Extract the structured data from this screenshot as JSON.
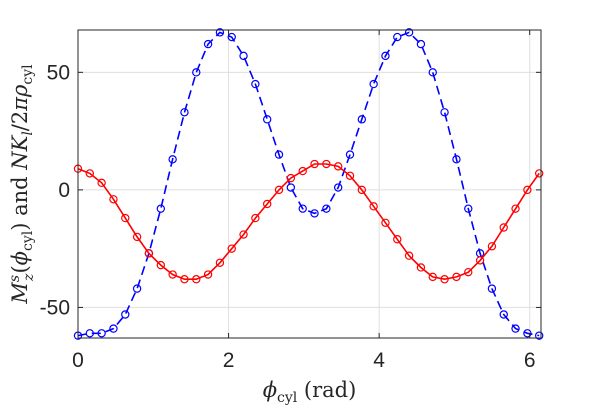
{
  "chart_data": {
    "type": "line",
    "title": "",
    "xlabel": "ϕ_cyl (rad)",
    "ylabel": "M_z^s(ϕ_cyl) and NK_l/2πρ_cyl",
    "xlim": [
      0,
      6.15
    ],
    "ylim": [
      -63,
      68
    ],
    "x_ticks": [
      "0",
      "2",
      "4",
      "6"
    ],
    "y_ticks": [
      "-50",
      "0",
      "50"
    ],
    "x_tick_values": [
      0,
      2,
      4,
      6
    ],
    "y_tick_values": [
      -50,
      0,
      50
    ],
    "grid": true,
    "legend": "none",
    "series": [
      {
        "color": "#0000ff",
        "line_style": "dashed",
        "marker": "circle",
        "x": [
          0,
          0.157,
          0.314,
          0.471,
          0.628,
          0.785,
          0.942,
          1.1,
          1.257,
          1.414,
          1.571,
          1.728,
          1.885,
          2.042,
          2.199,
          2.356,
          2.513,
          2.67,
          2.827,
          2.985,
          3.142,
          3.299,
          3.456,
          3.613,
          3.77,
          3.927,
          4.084,
          4.241,
          4.398,
          4.555,
          4.712,
          4.869,
          5.027,
          5.184,
          5.341,
          5.498,
          5.655,
          5.812,
          5.969,
          6.126
        ],
        "y": [
          -62,
          -61,
          -61,
          -59,
          -53,
          -42,
          -27,
          -8,
          13,
          33,
          50,
          62,
          67,
          65,
          57,
          45,
          30,
          15,
          1,
          -8,
          -10,
          -8,
          1,
          15,
          30,
          45,
          57,
          65,
          67,
          62,
          50,
          33,
          13,
          -8,
          -27,
          -42,
          -53,
          -59,
          -61,
          -62
        ]
      },
      {
        "color": "#ff0000",
        "line_style": "solid",
        "marker": "circle",
        "x": [
          0,
          0.157,
          0.314,
          0.471,
          0.628,
          0.785,
          0.942,
          1.1,
          1.257,
          1.414,
          1.571,
          1.728,
          1.885,
          2.042,
          2.199,
          2.356,
          2.513,
          2.67,
          2.827,
          2.985,
          3.142,
          3.299,
          3.456,
          3.613,
          3.77,
          3.927,
          4.084,
          4.241,
          4.398,
          4.555,
          4.712,
          4.869,
          5.027,
          5.184,
          5.341,
          5.498,
          5.655,
          5.812,
          5.969,
          6.126
        ],
        "y": [
          9,
          7,
          3,
          -4,
          -12,
          -20,
          -27,
          -32,
          -36,
          -38,
          -38,
          -36,
          -31,
          -25,
          -19,
          -12,
          -6,
          0,
          5,
          8,
          11,
          11,
          10,
          6,
          0,
          -7,
          -14,
          -21,
          -28,
          -33,
          -37,
          -38,
          -37,
          -35,
          -30,
          -24,
          -16,
          -8,
          0,
          7
        ]
      }
    ]
  }
}
